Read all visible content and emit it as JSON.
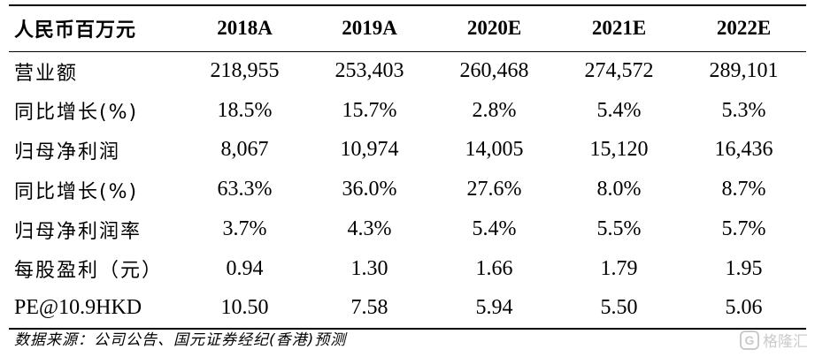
{
  "table": {
    "header": {
      "label": "人民币百万元",
      "years": [
        "2018A",
        "2019A",
        "2020E",
        "2021E",
        "2022E"
      ]
    },
    "rows": [
      {
        "label": "营业额",
        "values": [
          "218,955",
          "253,403",
          "260,468",
          "274,572",
          "289,101"
        ]
      },
      {
        "label": "同比增长(%)",
        "values": [
          "18.5%",
          "15.7%",
          "2.8%",
          "5.4%",
          "5.3%"
        ]
      },
      {
        "label": "归母净利润",
        "values": [
          "8,067",
          "10,974",
          "14,005",
          "15,120",
          "16,436"
        ]
      },
      {
        "label": "同比增长(%)",
        "values": [
          "63.3%",
          "36.0%",
          "27.6%",
          "8.0%",
          "8.7%"
        ]
      },
      {
        "label": "归母净利润率",
        "values": [
          "3.7%",
          "4.3%",
          "5.4%",
          "5.5%",
          "5.7%"
        ]
      },
      {
        "label": "每股盈利（元）",
        "values": [
          "0.94",
          "1.30",
          "1.66",
          "1.79",
          "1.95"
        ]
      },
      {
        "label": "PE@10.9HKD",
        "values": [
          "10.50",
          "7.58",
          "5.94",
          "5.50",
          "5.06"
        ]
      }
    ]
  },
  "source": "数据来源：公司公告、国元证券经纪(香港)预测",
  "watermark": {
    "logo_letter": "G",
    "text": "格隆汇"
  }
}
